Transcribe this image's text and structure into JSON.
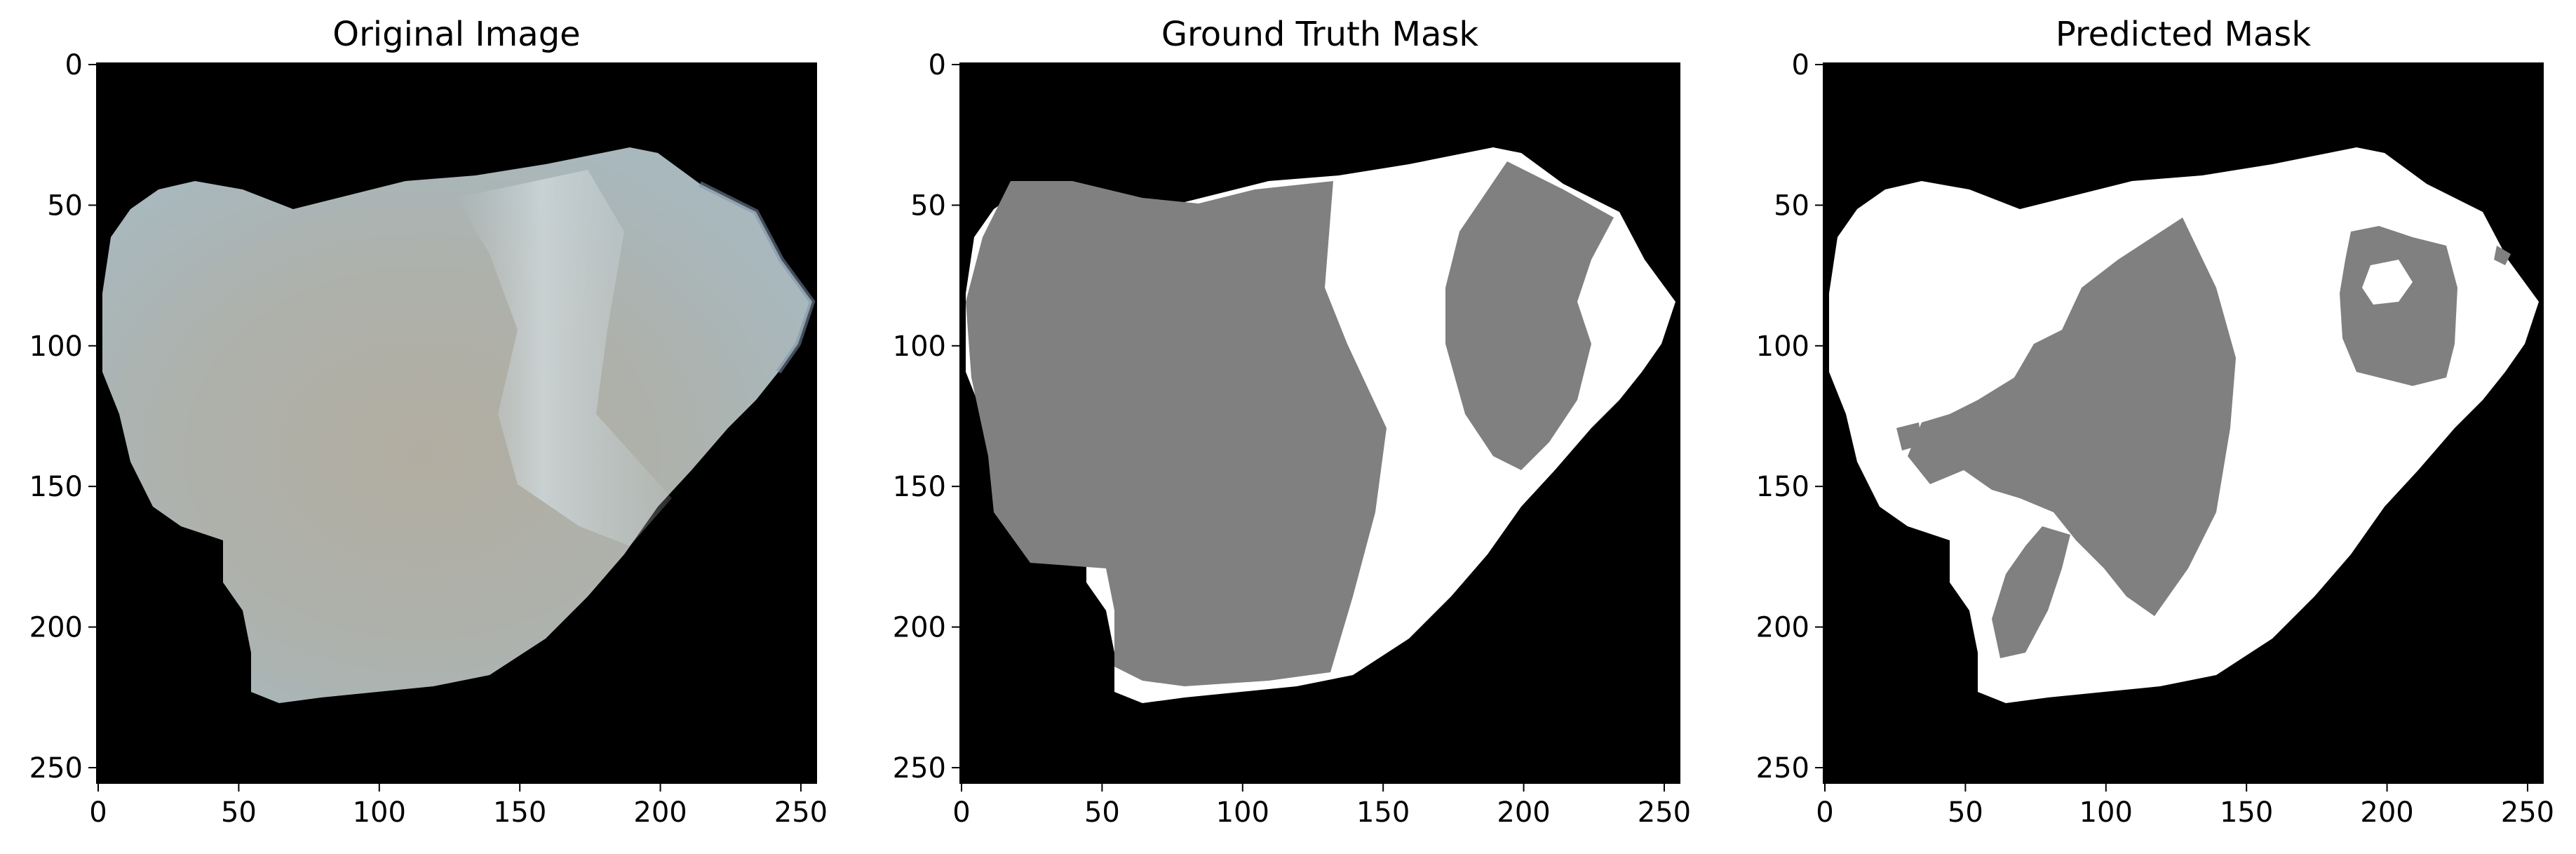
{
  "figure": {
    "panels": [
      {
        "title": "Original Image",
        "kind": "photo"
      },
      {
        "title": "Ground Truth Mask",
        "kind": "mask"
      },
      {
        "title": "Predicted Mask",
        "kind": "mask"
      }
    ],
    "x_ticks": [
      "0",
      "50",
      "100",
      "150",
      "200",
      "250"
    ],
    "y_ticks": [
      "0",
      "50",
      "100",
      "150",
      "200",
      "250"
    ]
  },
  "colors": {
    "background": "#000000",
    "rock_surface": "#a9b3b4",
    "mask_gray": "#808080",
    "mask_white": "#ffffff"
  }
}
